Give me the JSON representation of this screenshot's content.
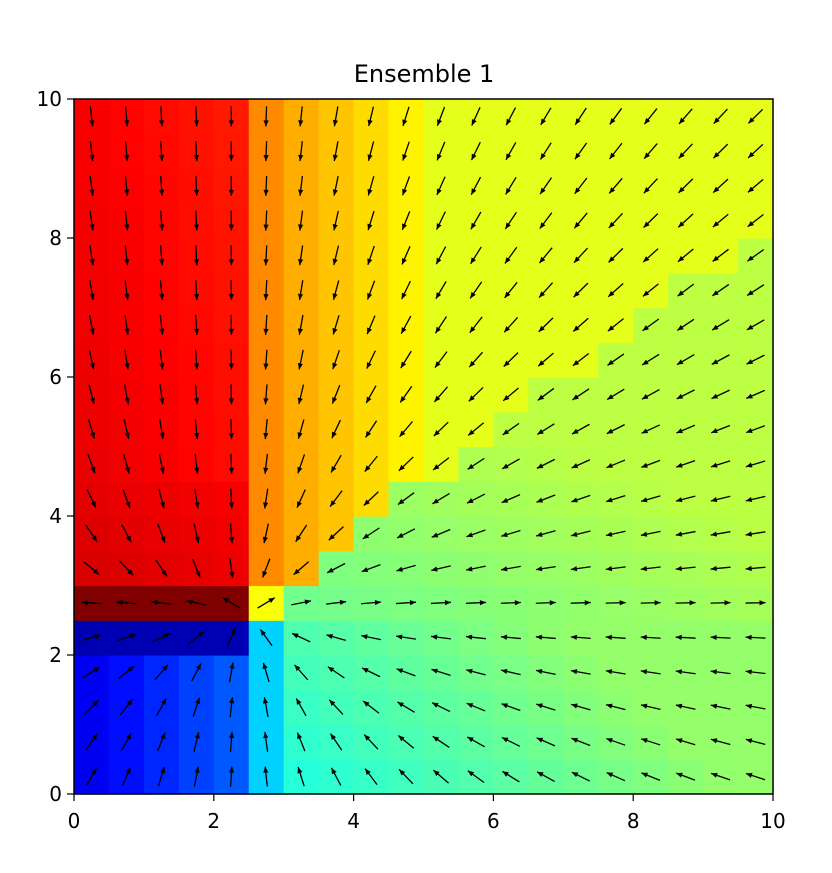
{
  "chart_data": {
    "type": "heatmap",
    "subtype": "heatmap-with-quiver-arrows",
    "title": "Ensemble 1",
    "xlabel": "",
    "ylabel": "",
    "xlim": [
      0,
      10
    ],
    "ylim": [
      0,
      10
    ],
    "x_ticks": [
      0,
      2,
      4,
      6,
      8,
      10
    ],
    "y_ticks": [
      0,
      2,
      4,
      6,
      8,
      10
    ],
    "x_tick_labels": [
      "0",
      "2",
      "4",
      "6",
      "8",
      "10"
    ],
    "y_tick_labels": [
      "0",
      "2",
      "4",
      "6",
      "8",
      "10"
    ],
    "grid": false,
    "colormap": "jet",
    "grid_cells": [
      20,
      20
    ],
    "cell_size": 0.5,
    "field_description": "Scalar field with arrows indicating the negative gradient direction; arrows radiate away from a focal region near (2.5, 2.6). Maximum (dark red) in the thin band at y≈2.5–2.9 for x<2.4, minimum (dark blue) just below it.",
    "source_point": [
      2.5,
      2.6
    ],
    "value_range": [
      0,
      1
    ],
    "sample_values": [
      {
        "x": 0.25,
        "y": 9.75,
        "value": 0.83,
        "label": "orange-red, top-left"
      },
      {
        "x": 0.25,
        "y": 3.25,
        "value": 0.9,
        "label": "red, left above boundary"
      },
      {
        "x": 0.25,
        "y": 2.75,
        "value": 1.0,
        "label": "dark red band"
      },
      {
        "x": 0.25,
        "y": 2.25,
        "value": 0.05,
        "label": "dark blue band"
      },
      {
        "x": 0.25,
        "y": 0.25,
        "value": 0.12,
        "label": "blue, bottom-left"
      },
      {
        "x": 2.6,
        "y": 2.6,
        "value": 0.6,
        "label": "yellow cell at junction"
      },
      {
        "x": 2.6,
        "y": 0.25,
        "value": 0.33,
        "label": "light blue column"
      },
      {
        "x": 9.75,
        "y": 9.75,
        "value": 0.6,
        "label": "yellow-green, top-right"
      },
      {
        "x": 9.75,
        "y": 0.25,
        "value": 0.5,
        "label": "green, bottom-right"
      }
    ]
  }
}
